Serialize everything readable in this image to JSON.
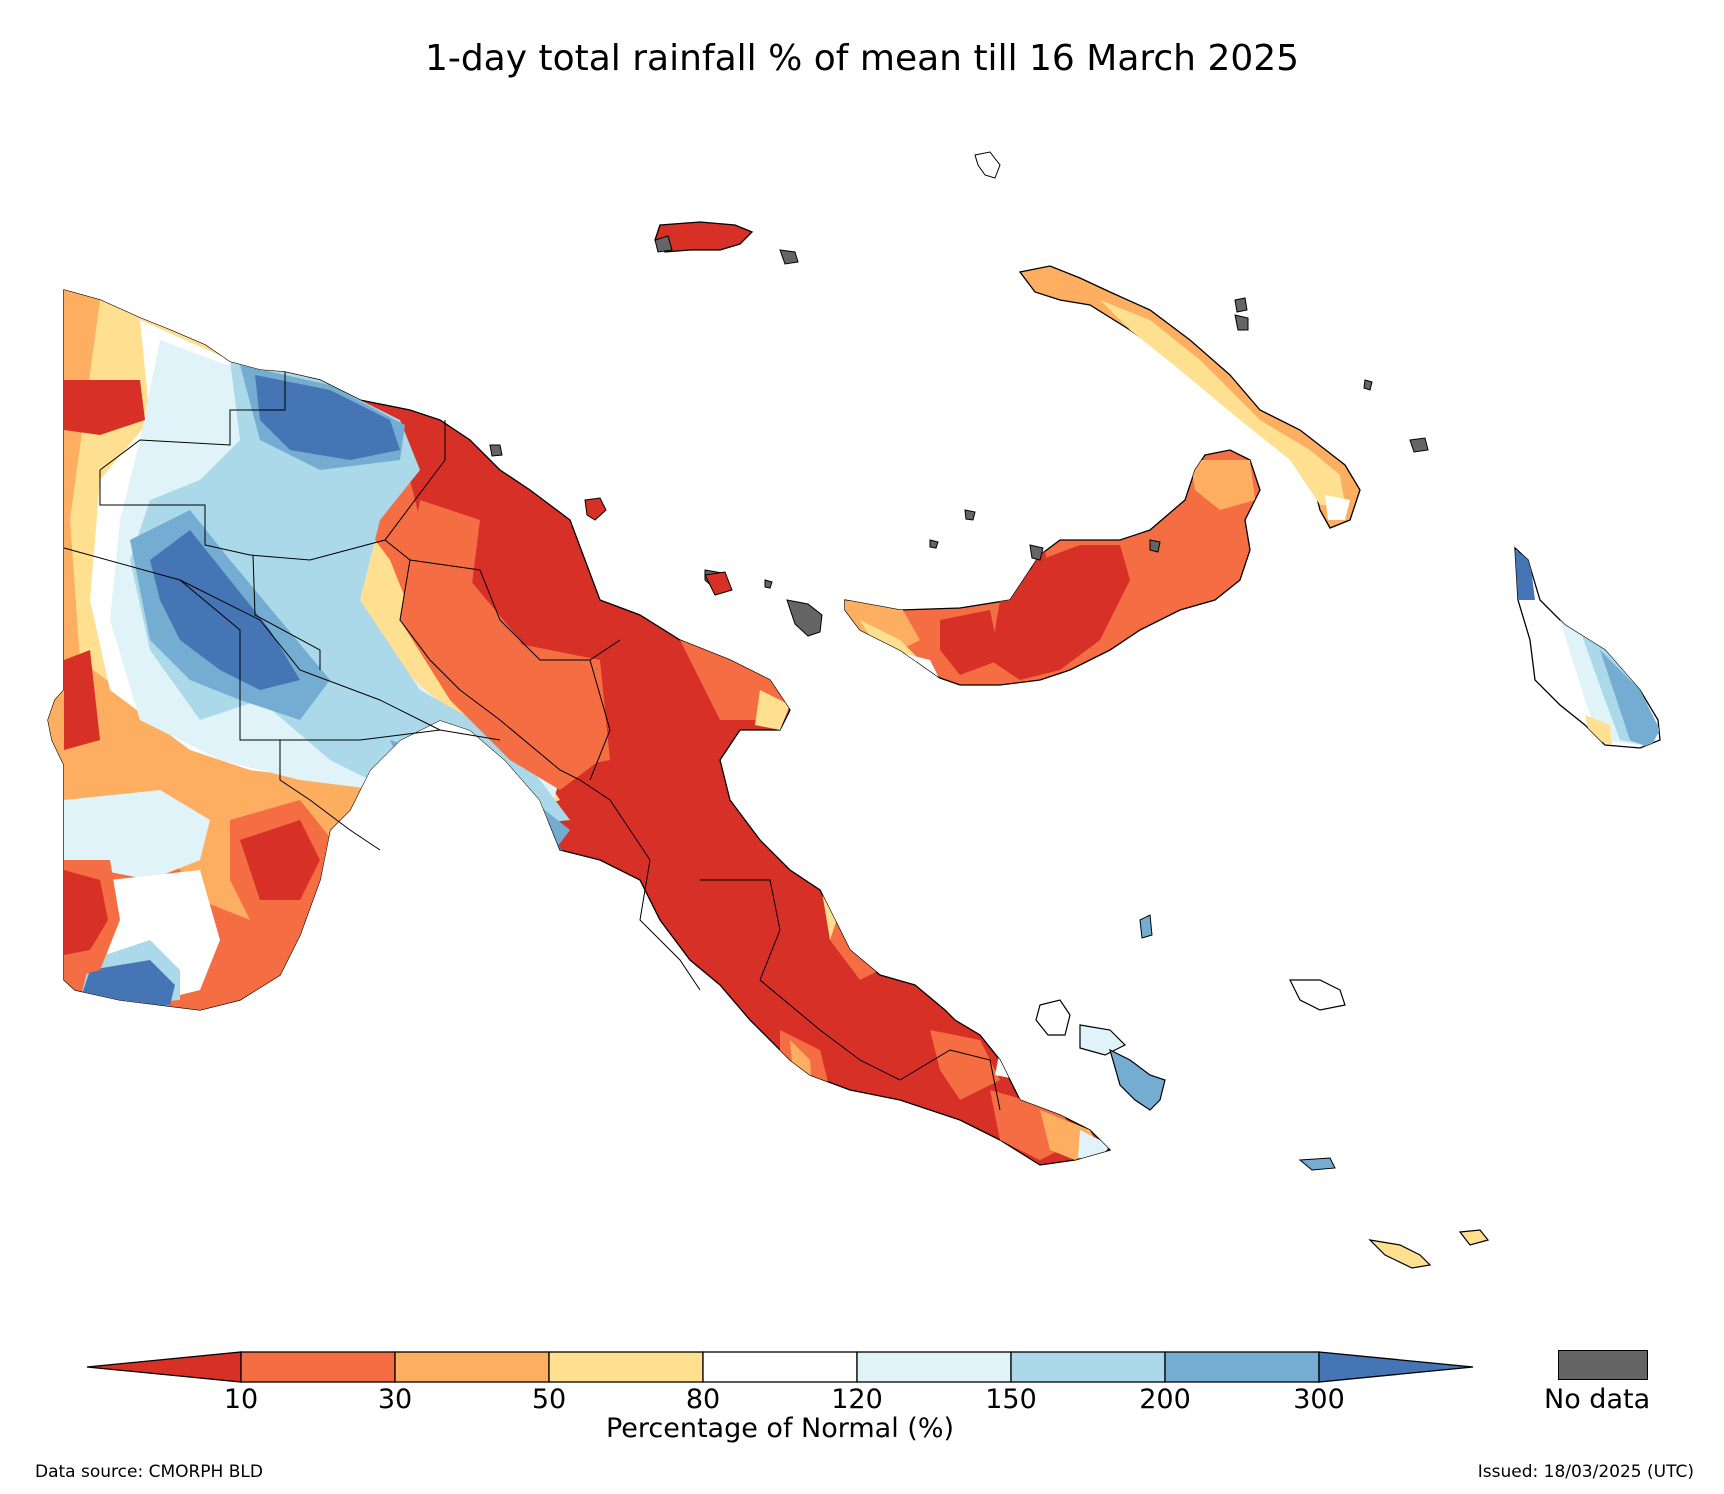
{
  "title": "1-day total rainfall % of mean till 16 March 2025",
  "colorbar": {
    "ticks": [
      "10",
      "30",
      "50",
      "80",
      "120",
      "150",
      "200",
      "300"
    ],
    "label": "Percentage of Normal (%)",
    "bins": [
      {
        "color": "#d73027"
      },
      {
        "color": "#f46d43"
      },
      {
        "color": "#fdae61"
      },
      {
        "color": "#fee090"
      },
      {
        "color": "#ffffff"
      },
      {
        "color": "#e0f3f8"
      },
      {
        "color": "#abd9e9"
      },
      {
        "color": "#74add1"
      },
      {
        "color": "#4575b4"
      }
    ]
  },
  "nodata": {
    "label": "No data",
    "color": "#656565"
  },
  "footer": {
    "source": "Data source: CMORPH BLD",
    "issued": "Issued: 18/03/2025 (UTC)"
  }
}
